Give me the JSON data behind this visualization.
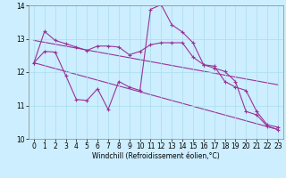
{
  "title": "",
  "xlabel": "Windchill (Refroidissement éolien,°C)",
  "bg_color": "#cceeff",
  "grid_color": "#aaddee",
  "line_color": "#993399",
  "xlim": [
    -0.5,
    23.5
  ],
  "ylim": [
    10,
    14
  ],
  "xticks": [
    0,
    1,
    2,
    3,
    4,
    5,
    6,
    7,
    8,
    9,
    10,
    11,
    12,
    13,
    14,
    15,
    16,
    17,
    18,
    19,
    20,
    21,
    22,
    23
  ],
  "yticks": [
    10,
    11,
    12,
    13,
    14
  ],
  "series1_x": [
    0,
    1,
    2,
    3,
    4,
    5,
    6,
    7,
    8,
    9,
    10,
    11,
    12,
    13,
    14,
    15,
    16,
    17,
    18,
    19,
    20,
    21,
    22,
    23
  ],
  "series1_y": [
    12.28,
    12.62,
    12.6,
    11.9,
    11.18,
    11.15,
    11.5,
    10.88,
    11.72,
    11.55,
    11.45,
    13.88,
    14.02,
    13.42,
    13.2,
    12.88,
    12.22,
    12.12,
    12.02,
    11.72,
    10.82,
    10.72,
    10.38,
    10.28
  ],
  "series2_x": [
    0,
    1,
    2,
    3,
    4,
    5,
    6,
    7,
    8,
    9,
    10,
    11,
    12,
    13,
    14,
    15,
    16,
    17,
    18,
    19,
    20,
    21,
    22,
    23
  ],
  "series2_y": [
    12.28,
    13.22,
    12.95,
    12.85,
    12.75,
    12.65,
    12.78,
    12.78,
    12.75,
    12.52,
    12.62,
    12.82,
    12.88,
    12.88,
    12.88,
    12.45,
    12.22,
    12.18,
    11.72,
    11.55,
    11.45,
    10.82,
    10.42,
    10.35
  ],
  "trend1_x": [
    0,
    23
  ],
  "trend1_y": [
    12.95,
    11.62
  ],
  "trend2_x": [
    0,
    23
  ],
  "trend2_y": [
    12.28,
    10.28
  ],
  "tick_fontsize": 5.5,
  "xlabel_fontsize": 5.5
}
